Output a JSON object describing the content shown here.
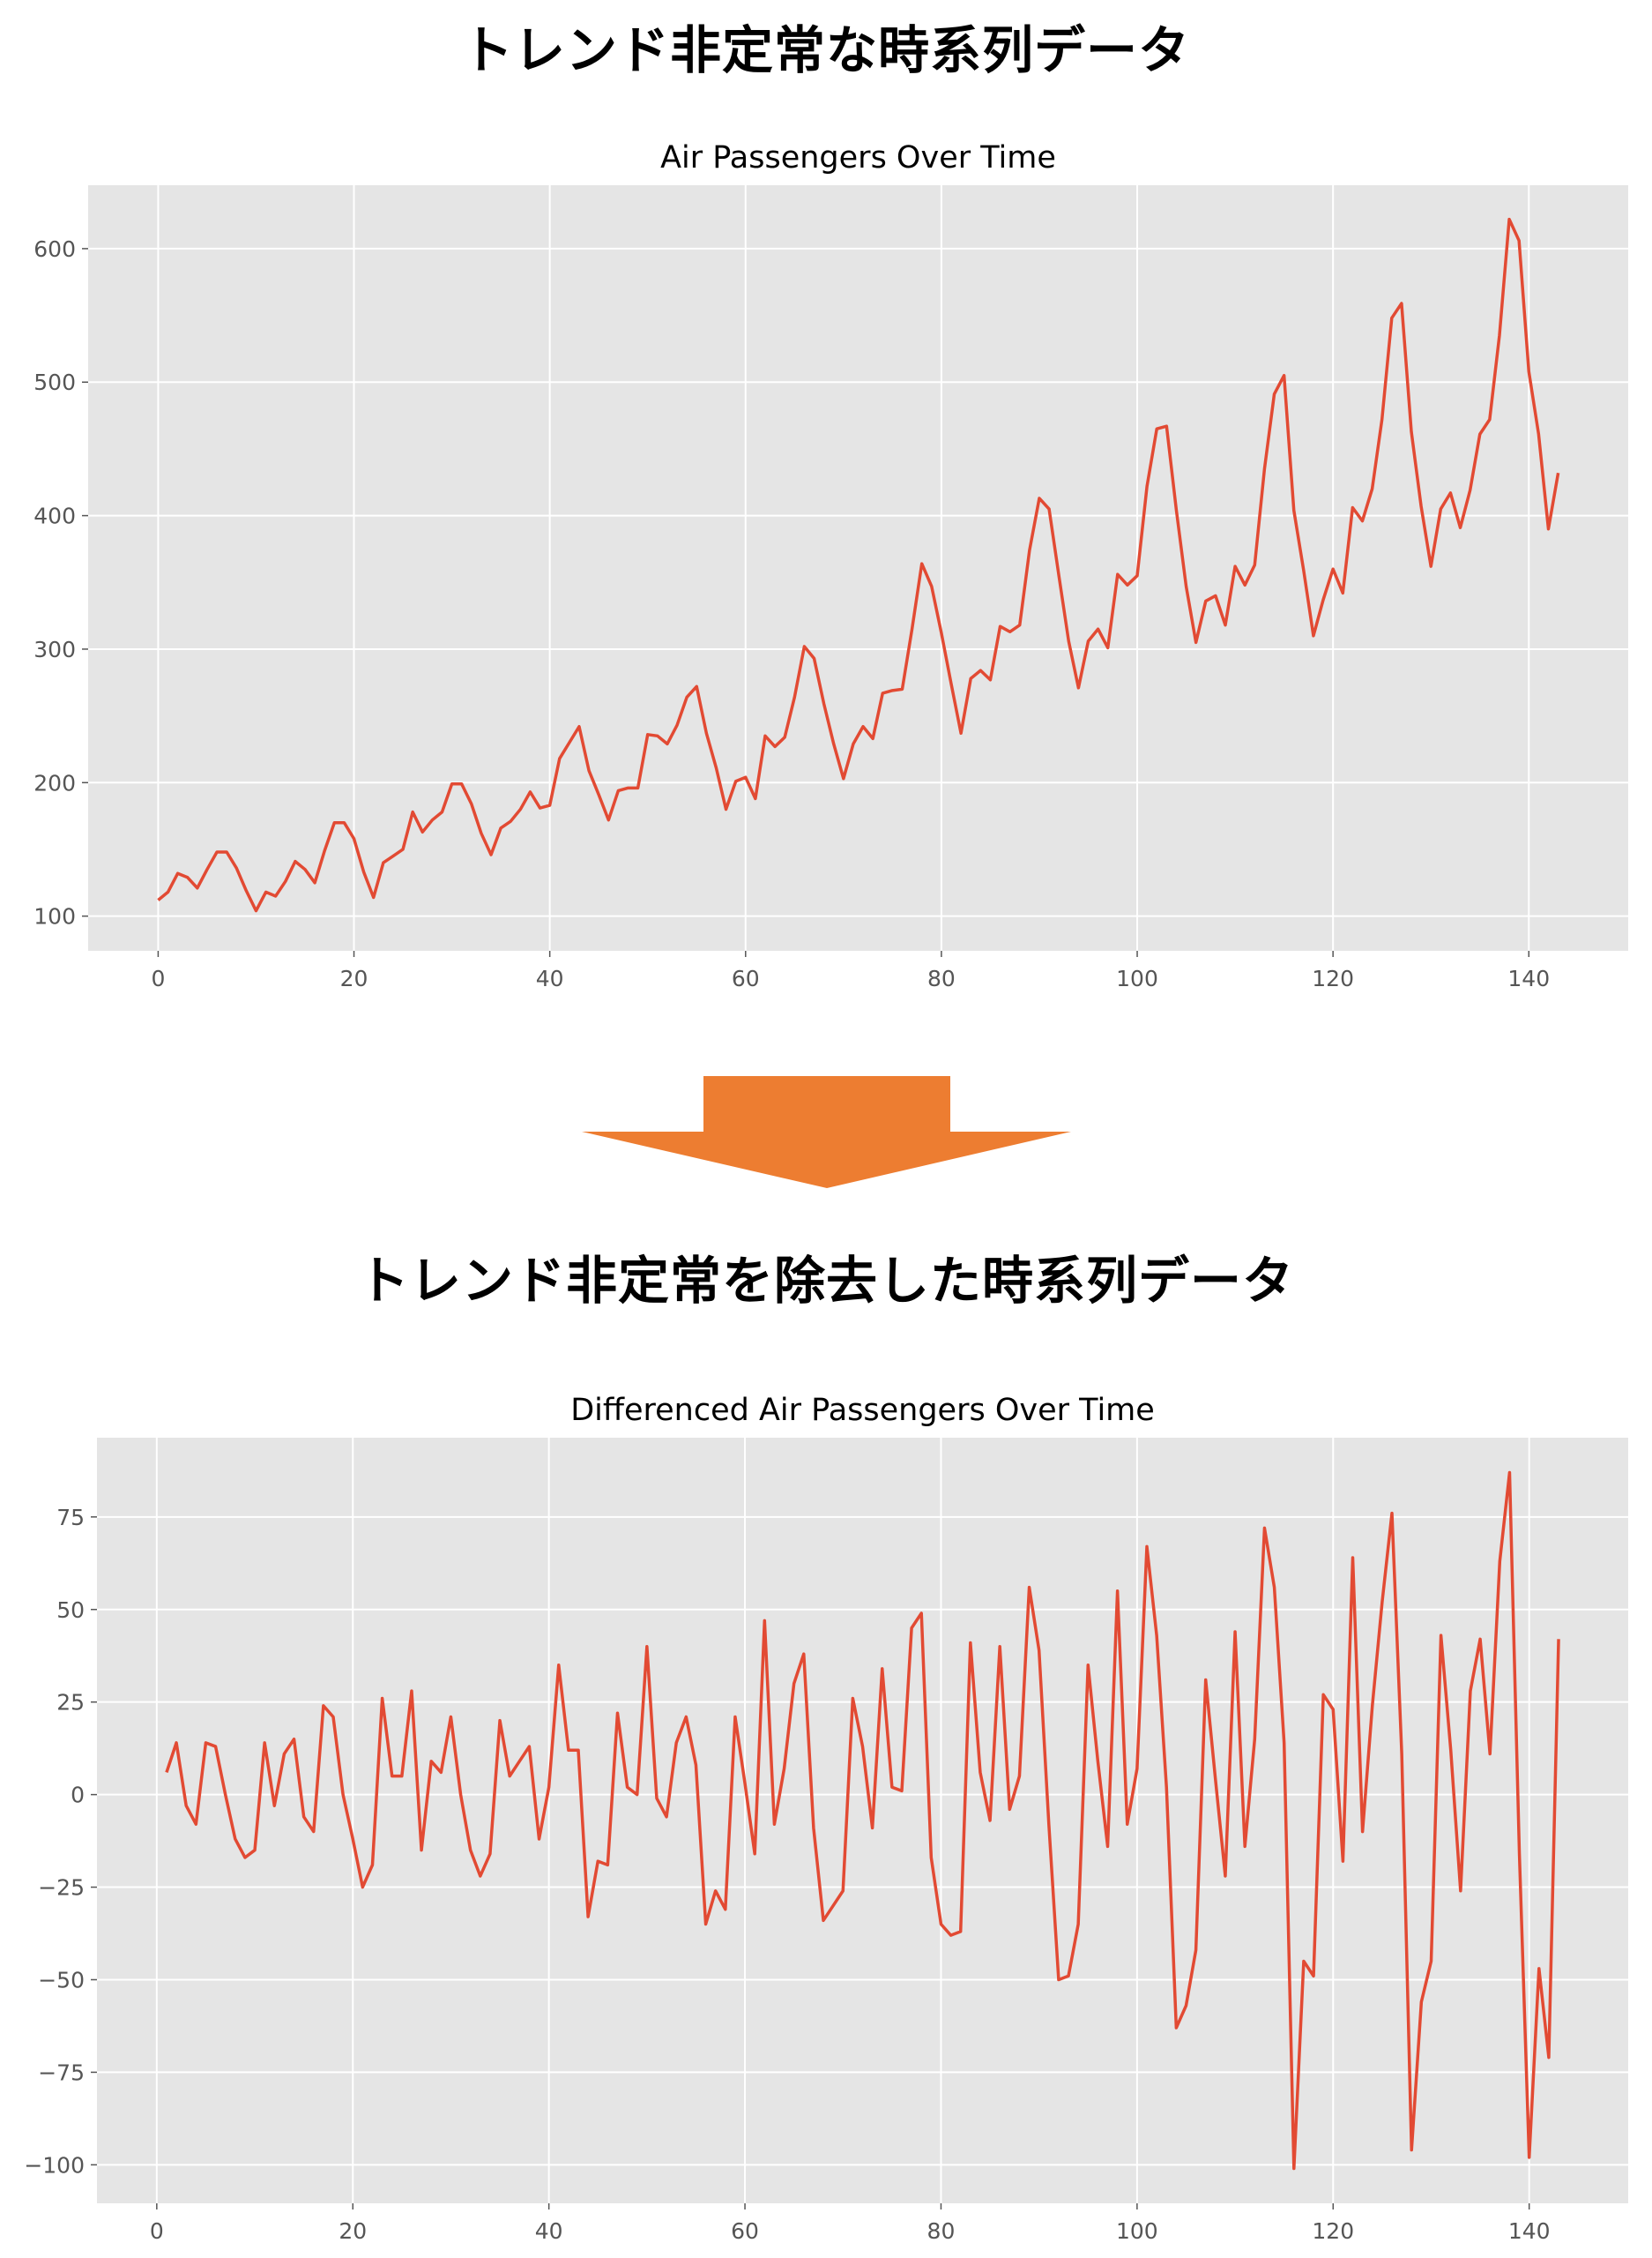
{
  "headings": {
    "top": "トレンド非定常な時系列データ",
    "bottom": "トレンド非定常を除去した時系列データ"
  },
  "colors": {
    "line": "#E24A33",
    "plot_background": "#E5E5E5",
    "grid": "#FFFFFF",
    "arrow": "#ED7D31"
  },
  "arrow_icon": "down-arrow-icon",
  "chart_data": [
    {
      "type": "line",
      "title": "Air Passengers Over Time",
      "xlabel": "",
      "ylabel": "",
      "x": [
        0,
        1,
        2,
        3,
        4,
        5,
        6,
        7,
        8,
        9,
        10,
        11,
        12,
        13,
        14,
        15,
        16,
        17,
        18,
        19,
        20,
        21,
        22,
        23,
        24,
        25,
        26,
        27,
        28,
        29,
        30,
        31,
        32,
        33,
        34,
        35,
        36,
        37,
        38,
        39,
        40,
        41,
        42,
        43,
        44,
        45,
        46,
        47,
        48,
        49,
        50,
        51,
        52,
        53,
        54,
        55,
        56,
        57,
        58,
        59,
        60,
        61,
        62,
        63,
        64,
        65,
        66,
        67,
        68,
        69,
        70,
        71,
        72,
        73,
        74,
        75,
        76,
        77,
        78,
        79,
        80,
        81,
        82,
        83,
        84,
        85,
        86,
        87,
        88,
        89,
        90,
        91,
        92,
        93,
        94,
        95,
        96,
        97,
        98,
        99,
        100,
        101,
        102,
        103,
        104,
        105,
        106,
        107,
        108,
        109,
        110,
        111,
        112,
        113,
        114,
        115,
        116,
        117,
        118,
        119,
        120,
        121,
        122,
        123,
        124,
        125,
        126,
        127,
        128,
        129,
        130,
        131,
        132,
        133,
        134,
        135,
        136,
        137,
        138,
        139,
        140,
        141,
        142,
        143
      ],
      "series": [
        {
          "values": [
            112,
            118,
            132,
            129,
            121,
            135,
            148,
            148,
            136,
            119,
            104,
            118,
            115,
            126,
            141,
            135,
            125,
            149,
            170,
            170,
            158,
            133,
            114,
            140,
            145,
            150,
            178,
            163,
            172,
            178,
            199,
            199,
            184,
            162,
            146,
            166,
            171,
            180,
            193,
            181,
            183,
            218,
            230,
            242,
            209,
            191,
            172,
            194,
            196,
            196,
            236,
            235,
            229,
            243,
            264,
            272,
            237,
            211,
            180,
            201,
            204,
            188,
            235,
            227,
            234,
            264,
            302,
            293,
            259,
            229,
            203,
            229,
            242,
            233,
            267,
            269,
            270,
            315,
            364,
            347,
            312,
            274,
            237,
            278,
            284,
            277,
            317,
            313,
            318,
            374,
            413,
            405,
            355,
            306,
            271,
            306,
            315,
            301,
            356,
            348,
            355,
            422,
            465,
            467,
            404,
            347,
            305,
            336,
            340,
            318,
            362,
            348,
            363,
            435,
            491,
            505,
            404,
            359,
            310,
            337,
            360,
            342,
            406,
            396,
            420,
            472,
            548,
            559,
            463,
            407,
            362,
            405,
            417,
            391,
            419,
            461,
            472,
            535,
            622,
            606,
            508,
            461,
            390,
            432
          ]
        }
      ],
      "xlim": [
        -7.15,
        150.15
      ],
      "ylim": [
        74,
        647.5
      ],
      "xticks": [
        0,
        20,
        40,
        60,
        80,
        100,
        120,
        140
      ],
      "yticks": [
        100,
        200,
        300,
        400,
        500,
        600
      ],
      "grid": true,
      "legend": "none"
    },
    {
      "type": "line",
      "title": "Differenced Air Passengers Over Time",
      "xlabel": "",
      "ylabel": "",
      "x": [
        1,
        2,
        3,
        4,
        5,
        6,
        7,
        8,
        9,
        10,
        11,
        12,
        13,
        14,
        15,
        16,
        17,
        18,
        19,
        20,
        21,
        22,
        23,
        24,
        25,
        26,
        27,
        28,
        29,
        30,
        31,
        32,
        33,
        34,
        35,
        36,
        37,
        38,
        39,
        40,
        41,
        42,
        43,
        44,
        45,
        46,
        47,
        48,
        49,
        50,
        51,
        52,
        53,
        54,
        55,
        56,
        57,
        58,
        59,
        60,
        61,
        62,
        63,
        64,
        65,
        66,
        67,
        68,
        69,
        70,
        71,
        72,
        73,
        74,
        75,
        76,
        77,
        78,
        79,
        80,
        81,
        82,
        83,
        84,
        85,
        86,
        87,
        88,
        89,
        90,
        91,
        92,
        93,
        94,
        95,
        96,
        97,
        98,
        99,
        100,
        101,
        102,
        103,
        104,
        105,
        106,
        107,
        108,
        109,
        110,
        111,
        112,
        113,
        114,
        115,
        116,
        117,
        118,
        119,
        120,
        121,
        122,
        123,
        124,
        125,
        126,
        127,
        128,
        129,
        130,
        131,
        132,
        133,
        134,
        135,
        136,
        137,
        138,
        139,
        140,
        141,
        142,
        143
      ],
      "series": [
        {
          "values": [
            6,
            14,
            -3,
            -8,
            14,
            13,
            0,
            -12,
            -17,
            -15,
            14,
            -3,
            11,
            15,
            -6,
            -10,
            24,
            21,
            0,
            -12,
            -25,
            -19,
            26,
            5,
            5,
            28,
            -15,
            9,
            6,
            21,
            0,
            -15,
            -22,
            -16,
            20,
            5,
            9,
            13,
            -12,
            2,
            35,
            12,
            12,
            -33,
            -18,
            -19,
            22,
            2,
            0,
            40,
            -1,
            -6,
            14,
            21,
            8,
            -35,
            -26,
            -31,
            21,
            3,
            -16,
            47,
            -8,
            7,
            30,
            38,
            -9,
            -34,
            -30,
            -26,
            26,
            13,
            -9,
            34,
            2,
            1,
            45,
            49,
            -17,
            -35,
            -38,
            -37,
            41,
            6,
            -7,
            40,
            -4,
            5,
            56,
            39,
            -8,
            -50,
            -49,
            -35,
            35,
            9,
            -14,
            55,
            -8,
            7,
            67,
            43,
            2,
            -63,
            -57,
            -42,
            31,
            4,
            -22,
            44,
            -14,
            15,
            72,
            56,
            14,
            -101,
            -45,
            -49,
            27,
            23,
            -18,
            64,
            -10,
            24,
            52,
            76,
            11,
            -96,
            -56,
            -45,
            43,
            12,
            -26,
            28,
            42,
            11,
            63,
            87,
            -16,
            -98,
            -47,
            -71,
            42
          ]
        }
      ],
      "xlim": [
        -6.1,
        150.1
      ],
      "ylim": [
        -110.4,
        96.4
      ],
      "xticks": [
        0,
        20,
        40,
        60,
        80,
        100,
        120,
        140
      ],
      "yticks": [
        -100,
        -75,
        -50,
        -25,
        0,
        25,
        50,
        75
      ],
      "grid": true,
      "legend": "none"
    }
  ]
}
